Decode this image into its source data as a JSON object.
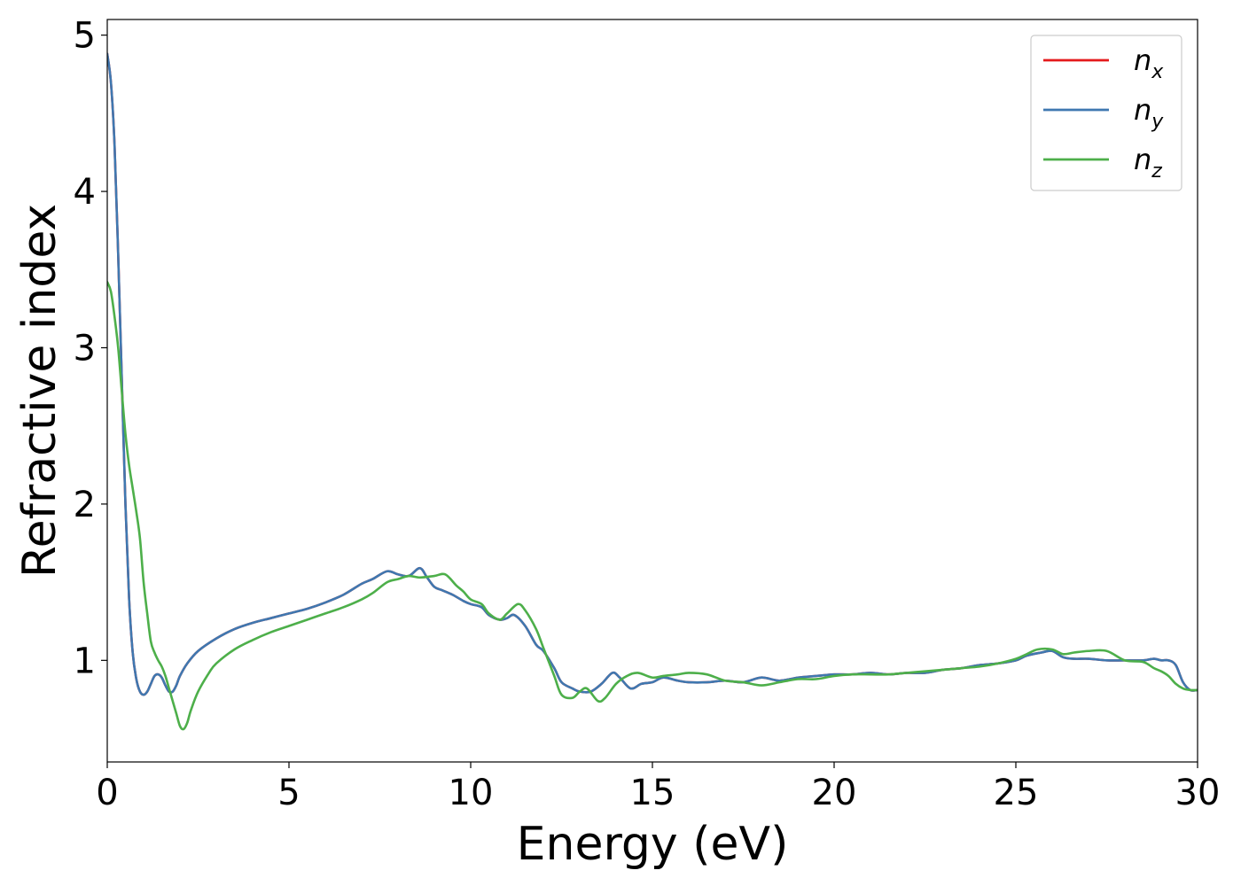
{
  "chart_data": {
    "type": "line",
    "title": "",
    "xlabel": "Energy (eV)",
    "ylabel": "Refractive index",
    "xlim": [
      0,
      30
    ],
    "ylim": [
      0.35,
      5.1
    ],
    "xticks": [
      0,
      5,
      10,
      15,
      20,
      25,
      30
    ],
    "yticks": [
      1,
      2,
      3,
      4,
      5
    ],
    "grid": false,
    "legend_position": "top-right",
    "series": [
      {
        "name": "n_x",
        "legend_base": "n",
        "legend_sub": "x",
        "color": "#e41a1c",
        "x": [
          0,
          0.1,
          0.2,
          0.3,
          0.4,
          0.5,
          0.6,
          0.7,
          0.8,
          0.9,
          1.0,
          1.1,
          1.2,
          1.3,
          1.4,
          1.5,
          1.6,
          1.7,
          1.8,
          1.9,
          2.0,
          2.2,
          2.5,
          3.0,
          3.5,
          4,
          4.5,
          5,
          5.5,
          6,
          6.5,
          7,
          7.3,
          7.7,
          8.0,
          8.3,
          8.6,
          8.8,
          9.0,
          9.2,
          9.5,
          9.8,
          10.0,
          10.3,
          10.5,
          10.8,
          11.0,
          11.2,
          11.5,
          11.8,
          12.0,
          12.3,
          12.5,
          12.8,
          13.0,
          13.3,
          13.6,
          13.9,
          14.1,
          14.4,
          14.7,
          15.0,
          15.3,
          15.7,
          16.0,
          16.5,
          17.0,
          17.5,
          18.0,
          18.5,
          19.0,
          19.5,
          20,
          20.5,
          21,
          21.5,
          22,
          22.5,
          23,
          23.5,
          24,
          24.5,
          25,
          25.3,
          25.7,
          26.0,
          26.3,
          26.6,
          27.0,
          27.5,
          28.0,
          28.5,
          28.8,
          29.0,
          29.2,
          29.4,
          29.6,
          29.8,
          30
        ],
        "y": [
          4.88,
          4.7,
          4.3,
          3.6,
          2.8,
          2.0,
          1.4,
          1.05,
          0.88,
          0.8,
          0.78,
          0.8,
          0.85,
          0.9,
          0.91,
          0.89,
          0.84,
          0.8,
          0.8,
          0.84,
          0.9,
          0.98,
          1.06,
          1.14,
          1.2,
          1.24,
          1.27,
          1.3,
          1.33,
          1.37,
          1.42,
          1.49,
          1.52,
          1.57,
          1.55,
          1.54,
          1.59,
          1.53,
          1.47,
          1.45,
          1.42,
          1.38,
          1.36,
          1.34,
          1.29,
          1.26,
          1.27,
          1.29,
          1.22,
          1.1,
          1.06,
          0.95,
          0.86,
          0.82,
          0.8,
          0.8,
          0.85,
          0.92,
          0.89,
          0.82,
          0.85,
          0.86,
          0.89,
          0.87,
          0.86,
          0.86,
          0.87,
          0.86,
          0.89,
          0.87,
          0.89,
          0.9,
          0.91,
          0.91,
          0.92,
          0.91,
          0.92,
          0.92,
          0.94,
          0.95,
          0.97,
          0.98,
          1.0,
          1.03,
          1.05,
          1.06,
          1.02,
          1.01,
          1.01,
          1.0,
          1.0,
          1.0,
          1.01,
          1.0,
          1.0,
          0.97,
          0.86,
          0.81,
          0.81
        ]
      },
      {
        "name": "n_y",
        "legend_base": "n",
        "legend_sub": "y",
        "color": "#3f78b0",
        "x": [
          0,
          0.1,
          0.2,
          0.3,
          0.4,
          0.5,
          0.6,
          0.7,
          0.8,
          0.9,
          1.0,
          1.1,
          1.2,
          1.3,
          1.4,
          1.5,
          1.6,
          1.7,
          1.8,
          1.9,
          2.0,
          2.2,
          2.5,
          3.0,
          3.5,
          4,
          4.5,
          5,
          5.5,
          6,
          6.5,
          7,
          7.3,
          7.7,
          8.0,
          8.3,
          8.6,
          8.8,
          9.0,
          9.2,
          9.5,
          9.8,
          10.0,
          10.3,
          10.5,
          10.8,
          11.0,
          11.2,
          11.5,
          11.8,
          12.0,
          12.3,
          12.5,
          12.8,
          13.0,
          13.3,
          13.6,
          13.9,
          14.1,
          14.4,
          14.7,
          15.0,
          15.3,
          15.7,
          16.0,
          16.5,
          17.0,
          17.5,
          18.0,
          18.5,
          19.0,
          19.5,
          20,
          20.5,
          21,
          21.5,
          22,
          22.5,
          23,
          23.5,
          24,
          24.5,
          25,
          25.3,
          25.7,
          26.0,
          26.3,
          26.6,
          27.0,
          27.5,
          28.0,
          28.5,
          28.8,
          29.0,
          29.2,
          29.4,
          29.6,
          29.8,
          30
        ],
        "y": [
          4.88,
          4.7,
          4.3,
          3.6,
          2.8,
          2.0,
          1.4,
          1.05,
          0.88,
          0.8,
          0.78,
          0.8,
          0.85,
          0.9,
          0.91,
          0.89,
          0.84,
          0.8,
          0.8,
          0.84,
          0.9,
          0.98,
          1.06,
          1.14,
          1.2,
          1.24,
          1.27,
          1.3,
          1.33,
          1.37,
          1.42,
          1.49,
          1.52,
          1.57,
          1.55,
          1.54,
          1.59,
          1.53,
          1.47,
          1.45,
          1.42,
          1.38,
          1.36,
          1.34,
          1.29,
          1.26,
          1.27,
          1.29,
          1.22,
          1.1,
          1.06,
          0.95,
          0.86,
          0.82,
          0.8,
          0.8,
          0.85,
          0.92,
          0.89,
          0.82,
          0.85,
          0.86,
          0.89,
          0.87,
          0.86,
          0.86,
          0.87,
          0.86,
          0.89,
          0.87,
          0.89,
          0.9,
          0.91,
          0.91,
          0.92,
          0.91,
          0.92,
          0.92,
          0.94,
          0.95,
          0.97,
          0.98,
          1.0,
          1.03,
          1.05,
          1.06,
          1.02,
          1.01,
          1.01,
          1.0,
          1.0,
          1.0,
          1.01,
          1.0,
          1.0,
          0.97,
          0.86,
          0.81,
          0.81
        ]
      },
      {
        "name": "n_z",
        "legend_base": "n",
        "legend_sub": "z",
        "color": "#4daf4a",
        "x": [
          0,
          0.1,
          0.2,
          0.3,
          0.4,
          0.5,
          0.6,
          0.7,
          0.8,
          0.9,
          1.0,
          1.1,
          1.2,
          1.3,
          1.4,
          1.5,
          1.6,
          1.7,
          1.8,
          1.9,
          2.0,
          2.1,
          2.2,
          2.3,
          2.5,
          2.8,
          3.0,
          3.5,
          4,
          4.5,
          5,
          5.5,
          6,
          6.5,
          7,
          7.3,
          7.7,
          8.0,
          8.3,
          8.6,
          9.0,
          9.3,
          9.6,
          9.8,
          10.0,
          10.3,
          10.5,
          10.8,
          11.0,
          11.3,
          11.5,
          11.8,
          12.0,
          12.3,
          12.5,
          12.8,
          13.0,
          13.2,
          13.5,
          13.7,
          14.0,
          14.3,
          14.6,
          15.0,
          15.3,
          15.7,
          16.0,
          16.5,
          17.0,
          17.5,
          18.0,
          18.5,
          19.0,
          19.5,
          20,
          20.5,
          21,
          21.5,
          22,
          22.5,
          23,
          23.5,
          24,
          24.5,
          25,
          25.3,
          25.6,
          26.0,
          26.3,
          26.6,
          27.0,
          27.5,
          28.0,
          28.5,
          28.8,
          29.0,
          29.2,
          29.4,
          29.6,
          29.8,
          30
        ],
        "y": [
          3.42,
          3.36,
          3.2,
          3.0,
          2.72,
          2.45,
          2.25,
          2.1,
          1.95,
          1.78,
          1.5,
          1.3,
          1.12,
          1.05,
          1.0,
          0.96,
          0.9,
          0.82,
          0.74,
          0.66,
          0.58,
          0.56,
          0.6,
          0.68,
          0.8,
          0.92,
          0.98,
          1.07,
          1.13,
          1.18,
          1.22,
          1.26,
          1.3,
          1.34,
          1.39,
          1.43,
          1.5,
          1.52,
          1.54,
          1.53,
          1.54,
          1.55,
          1.48,
          1.44,
          1.39,
          1.36,
          1.3,
          1.26,
          1.3,
          1.36,
          1.32,
          1.2,
          1.08,
          0.9,
          0.78,
          0.76,
          0.8,
          0.82,
          0.74,
          0.76,
          0.85,
          0.9,
          0.92,
          0.89,
          0.9,
          0.91,
          0.92,
          0.91,
          0.87,
          0.86,
          0.84,
          0.86,
          0.88,
          0.88,
          0.9,
          0.91,
          0.91,
          0.91,
          0.92,
          0.93,
          0.94,
          0.95,
          0.96,
          0.98,
          1.01,
          1.04,
          1.07,
          1.07,
          1.04,
          1.05,
          1.06,
          1.06,
          1.0,
          0.99,
          0.95,
          0.93,
          0.9,
          0.85,
          0.82,
          0.81,
          0.81
        ]
      }
    ]
  }
}
